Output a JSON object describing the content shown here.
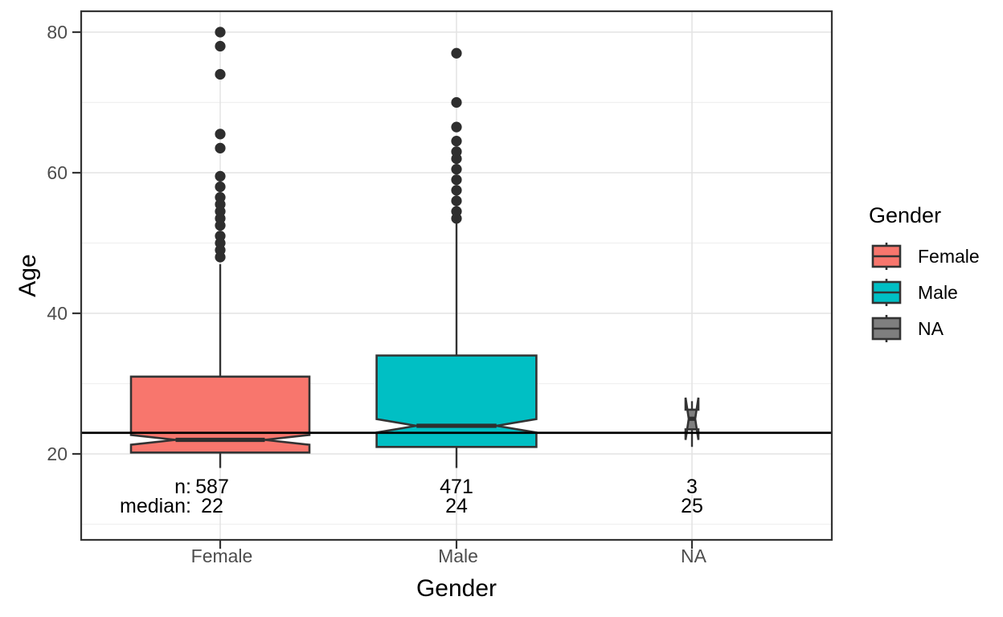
{
  "chart_data": {
    "type": "boxplot",
    "title": "",
    "xlabel": "Gender",
    "ylabel": "Age",
    "x_categories": [
      "Female",
      "Male",
      "NA"
    ],
    "y_ticks": [
      20,
      40,
      60,
      80
    ],
    "y_minor_gridlines": [
      10,
      30,
      50,
      70
    ],
    "ylim": [
      7.8,
      83.2
    ],
    "reference_line_y": 23,
    "notched": true,
    "varwidth": true,
    "grid": true,
    "legend_position": "right",
    "groups": [
      {
        "label": "Female",
        "fill": "#F8766D",
        "n": 587,
        "median": 22,
        "stats": {
          "whisker_low": 18,
          "q1": 20.2,
          "median": 22,
          "q3": 31,
          "whisker_high": 47,
          "notch_low": 21.3,
          "notch_high": 22.7
        },
        "outliers": [
          48,
          49,
          50,
          51,
          52.5,
          53.5,
          54.5,
          55.5,
          56.5,
          58,
          59.5,
          63.5,
          65.5,
          74,
          78,
          80
        ]
      },
      {
        "label": "Male",
        "fill": "#00BFC4",
        "n": 471,
        "median": 24,
        "stats": {
          "whisker_low": 18,
          "q1": 21,
          "median": 24,
          "q3": 34,
          "whisker_high": 53,
          "notch_low": 23.05,
          "notch_high": 24.95
        },
        "outliers": [
          53.5,
          54.5,
          56,
          57.5,
          59,
          60.5,
          62,
          63,
          64.5,
          66.5,
          70,
          77
        ]
      },
      {
        "label": "NA",
        "fill": "#7F7F7F",
        "n": 3,
        "median": 25,
        "stats": {
          "whisker_low": 21,
          "q1": 23.5,
          "median": 25,
          "q3": 26.3,
          "whisker_high": 27.5,
          "notch_low": 22,
          "notch_high": 28
        },
        "outliers": []
      }
    ],
    "annotations": {
      "row_labels": [
        "n:",
        "median:"
      ],
      "values": [
        [
          "587",
          "22"
        ],
        [
          "471",
          "24"
        ],
        [
          "3",
          "25"
        ]
      ]
    },
    "legend": {
      "title": "Gender",
      "items": [
        {
          "label": "Female",
          "fill": "#F8766D"
        },
        {
          "label": "Male",
          "fill": "#00BFC4"
        },
        {
          "label": "NA",
          "fill": "#7F7F7F"
        }
      ]
    },
    "style": {
      "background": "#FFFFFF",
      "panel_border": "#333333",
      "grid_major": "#E4E4E4",
      "grid_minor": "#F0F0F0",
      "box_border": "#333333",
      "median_bar": "#2E2E2E",
      "outlier_color": "#2E2E2E",
      "tick_label_color": "#4D4D4D",
      "axis_title_color": "#000000",
      "annotation_color": "#000000",
      "reference_line_color": "#000000",
      "legend_text_color": "#000000"
    }
  }
}
